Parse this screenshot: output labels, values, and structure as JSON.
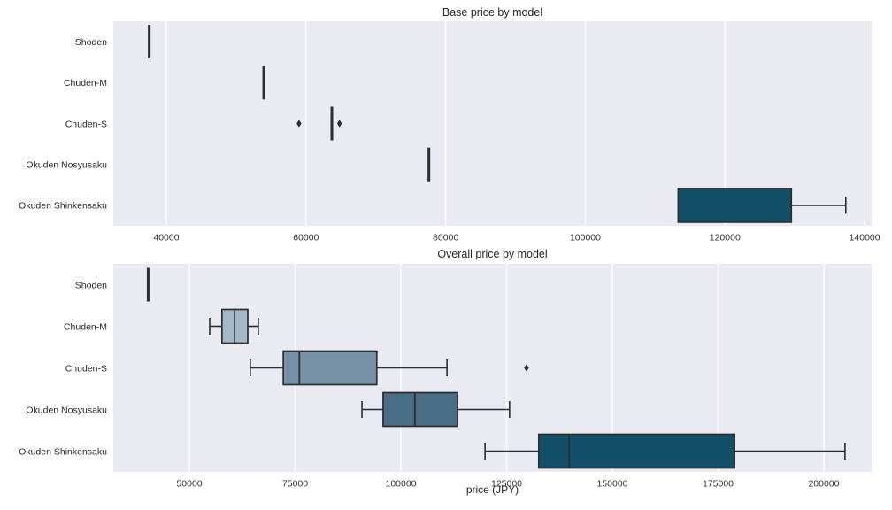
{
  "figure": {
    "background": "#ffffff",
    "panel_background": "#eaeaf2",
    "grid_color": "#ffffff",
    "edge_color": "#2d2d2d",
    "title_color": "#262626",
    "tick_color": "#333333",
    "palette": [
      "#c9d7e3",
      "#a3b9cb",
      "#7791a6",
      "#4a6d86",
      "#134f68"
    ]
  },
  "chart_data": [
    {
      "type": "boxplot",
      "orientation": "horizontal",
      "title": "Base price by model",
      "xlabel": "",
      "xlim": [
        32400,
        141000
      ],
      "xticks": [
        "40000",
        "60000",
        "80000",
        "100000",
        "120000",
        "140000"
      ],
      "xtick_values": [
        40000,
        60000,
        80000,
        100000,
        120000,
        140000
      ],
      "grid": true,
      "categories": [
        "Shoden",
        "Chuden-M",
        "Chuden-S",
        "Okuden Nosyusaku",
        "Okuden Shinkensaku"
      ],
      "boxes": [
        {
          "label": "Shoden",
          "whislo": 37500,
          "q1": 37500,
          "med": 37500,
          "q3": 37600,
          "whishi": 37600,
          "outliers": []
        },
        {
          "label": "Chuden-M",
          "whislo": 53900,
          "q1": 53900,
          "med": 53900,
          "q3": 54000,
          "whishi": 54000,
          "outliers": []
        },
        {
          "label": "Chuden-S",
          "whislo": 63600,
          "q1": 63600,
          "med": 63700,
          "q3": 63800,
          "whishi": 63800,
          "outliers": [
            59000,
            64800
          ]
        },
        {
          "label": "Okuden Nosyusaku",
          "whislo": 77500,
          "q1": 77500,
          "med": 77600,
          "q3": 77700,
          "whishi": 77700,
          "outliers": []
        },
        {
          "label": "Okuden Shinkensaku",
          "whislo": 113300,
          "q1": 113300,
          "med": 113300,
          "q3": 129500,
          "whishi": 137300,
          "outliers": []
        }
      ]
    },
    {
      "type": "boxplot",
      "orientation": "horizontal",
      "title": "Overall price by model",
      "xlabel": "price (JPY)",
      "xlim": [
        32000,
        211300
      ],
      "xticks": [
        "50000",
        "75000",
        "100000",
        "125000",
        "150000",
        "175000",
        "200000"
      ],
      "xtick_values": [
        50000,
        75000,
        100000,
        125000,
        150000,
        175000,
        200000
      ],
      "grid": true,
      "categories": [
        "Shoden",
        "Chuden-M",
        "Chuden-S",
        "Okuden Nosyusaku",
        "Okuden Shinkensaku"
      ],
      "boxes": [
        {
          "label": "Shoden",
          "whislo": 40200,
          "q1": 40200,
          "med": 40200,
          "q3": 40300,
          "whishi": 40300,
          "outliers": []
        },
        {
          "label": "Chuden-M",
          "whislo": 54800,
          "q1": 57700,
          "med": 60700,
          "q3": 63800,
          "whishi": 66300,
          "outliers": []
        },
        {
          "label": "Chuden-S",
          "whislo": 64400,
          "q1": 72200,
          "med": 76000,
          "q3": 94300,
          "whishi": 110900,
          "outliers": [
            129700
          ]
        },
        {
          "label": "Okuden Nosyusaku",
          "whislo": 90800,
          "q1": 95800,
          "med": 103300,
          "q3": 113400,
          "whishi": 125700,
          "outliers": []
        },
        {
          "label": "Okuden Shinkensaku",
          "whislo": 119900,
          "q1": 132600,
          "med": 139800,
          "q3": 178900,
          "whishi": 205000,
          "outliers": []
        }
      ]
    }
  ]
}
